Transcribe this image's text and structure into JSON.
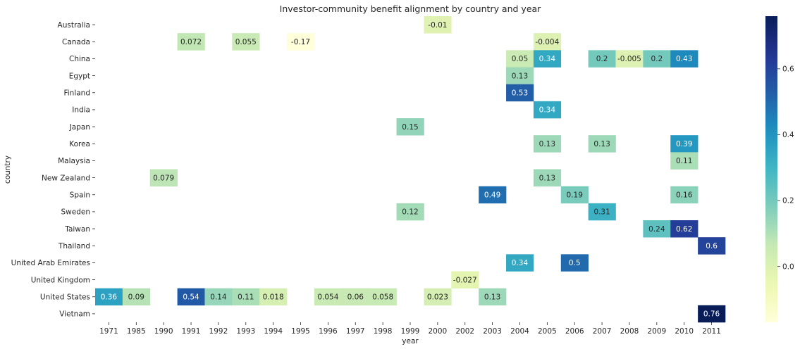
{
  "chart_data": {
    "type": "heatmap",
    "title": "Investor-community benefit alignment by country and year",
    "xlabel": "year",
    "ylabel": "country",
    "x_categories": [
      "1971",
      "1985",
      "1990",
      "1991",
      "1992",
      "1993",
      "1994",
      "1995",
      "1996",
      "1997",
      "1998",
      "1999",
      "2000",
      "2002",
      "2003",
      "2004",
      "2005",
      "2006",
      "2007",
      "2008",
      "2009",
      "2010",
      "2011"
    ],
    "y_categories": [
      "Australia",
      "Canada",
      "China",
      "Egypt",
      "Finland",
      "India",
      "Japan",
      "Korea",
      "Malaysia",
      "New Zealand",
      "Spain",
      "Sweden",
      "Taiwan",
      "Thailand",
      "United Arab Emirates",
      "United Kingdom",
      "United States",
      "Vietnam"
    ],
    "colormap": "YlGnBu",
    "vmin": -0.17,
    "vmax": 0.76,
    "colorbar_ticks": [
      "0.0",
      "0.2",
      "0.4",
      "0.6"
    ],
    "colorbar_tick_values": [
      0.0,
      0.2,
      0.4,
      0.6
    ],
    "cells": [
      {
        "country": "Australia",
        "year": "2000",
        "value": -0.01,
        "label": "-0.01"
      },
      {
        "country": "Canada",
        "year": "1991",
        "value": 0.072,
        "label": "0.072"
      },
      {
        "country": "Canada",
        "year": "1993",
        "value": 0.055,
        "label": "0.055"
      },
      {
        "country": "Canada",
        "year": "1995",
        "value": -0.17,
        "label": "-0.17"
      },
      {
        "country": "Canada",
        "year": "2005",
        "value": -0.004,
        "label": "-0.004"
      },
      {
        "country": "China",
        "year": "2004",
        "value": 0.05,
        "label": "0.05"
      },
      {
        "country": "China",
        "year": "2005",
        "value": 0.34,
        "label": "0.34"
      },
      {
        "country": "China",
        "year": "2007",
        "value": 0.2,
        "label": "0.2"
      },
      {
        "country": "China",
        "year": "2008",
        "value": -0.005,
        "label": "-0.005"
      },
      {
        "country": "China",
        "year": "2009",
        "value": 0.2,
        "label": "0.2"
      },
      {
        "country": "China",
        "year": "2010",
        "value": 0.43,
        "label": "0.43"
      },
      {
        "country": "Egypt",
        "year": "2004",
        "value": 0.13,
        "label": "0.13"
      },
      {
        "country": "Finland",
        "year": "2004",
        "value": 0.53,
        "label": "0.53"
      },
      {
        "country": "India",
        "year": "2005",
        "value": 0.34,
        "label": "0.34"
      },
      {
        "country": "Japan",
        "year": "1999",
        "value": 0.15,
        "label": "0.15"
      },
      {
        "country": "Korea",
        "year": "2005",
        "value": 0.13,
        "label": "0.13"
      },
      {
        "country": "Korea",
        "year": "2007",
        "value": 0.13,
        "label": "0.13"
      },
      {
        "country": "Korea",
        "year": "2010",
        "value": 0.39,
        "label": "0.39"
      },
      {
        "country": "Malaysia",
        "year": "2010",
        "value": 0.11,
        "label": "0.11"
      },
      {
        "country": "New Zealand",
        "year": "1990",
        "value": 0.079,
        "label": "0.079"
      },
      {
        "country": "New Zealand",
        "year": "2005",
        "value": 0.13,
        "label": "0.13"
      },
      {
        "country": "Spain",
        "year": "2003",
        "value": 0.49,
        "label": "0.49"
      },
      {
        "country": "Spain",
        "year": "2006",
        "value": 0.19,
        "label": "0.19"
      },
      {
        "country": "Spain",
        "year": "2010",
        "value": 0.16,
        "label": "0.16"
      },
      {
        "country": "Sweden",
        "year": "1999",
        "value": 0.12,
        "label": "0.12"
      },
      {
        "country": "Sweden",
        "year": "2007",
        "value": 0.31,
        "label": "0.31"
      },
      {
        "country": "Taiwan",
        "year": "2009",
        "value": 0.24,
        "label": "0.24"
      },
      {
        "country": "Taiwan",
        "year": "2010",
        "value": 0.62,
        "label": "0.62"
      },
      {
        "country": "Thailand",
        "year": "2011",
        "value": 0.6,
        "label": "0.6"
      },
      {
        "country": "United Arab Emirates",
        "year": "2004",
        "value": 0.34,
        "label": "0.34"
      },
      {
        "country": "United Arab Emirates",
        "year": "2006",
        "value": 0.5,
        "label": "0.5"
      },
      {
        "country": "United Kingdom",
        "year": "2002",
        "value": -0.027,
        "label": "-0.027"
      },
      {
        "country": "United States",
        "year": "1971",
        "value": 0.36,
        "label": "0.36"
      },
      {
        "country": "United States",
        "year": "1985",
        "value": 0.09,
        "label": "0.09"
      },
      {
        "country": "United States",
        "year": "1991",
        "value": 0.54,
        "label": "0.54"
      },
      {
        "country": "United States",
        "year": "1992",
        "value": 0.14,
        "label": "0.14"
      },
      {
        "country": "United States",
        "year": "1993",
        "value": 0.11,
        "label": "0.11"
      },
      {
        "country": "United States",
        "year": "1994",
        "value": 0.018,
        "label": "0.018"
      },
      {
        "country": "United States",
        "year": "1996",
        "value": 0.054,
        "label": "0.054"
      },
      {
        "country": "United States",
        "year": "1997",
        "value": 0.06,
        "label": "0.06"
      },
      {
        "country": "United States",
        "year": "1998",
        "value": 0.058,
        "label": "0.058"
      },
      {
        "country": "United States",
        "year": "2000",
        "value": 0.023,
        "label": "0.023"
      },
      {
        "country": "United States",
        "year": "2003",
        "value": 0.13,
        "label": "0.13"
      },
      {
        "country": "Vietnam",
        "year": "2011",
        "value": 0.76,
        "label": "0.76"
      }
    ]
  }
}
